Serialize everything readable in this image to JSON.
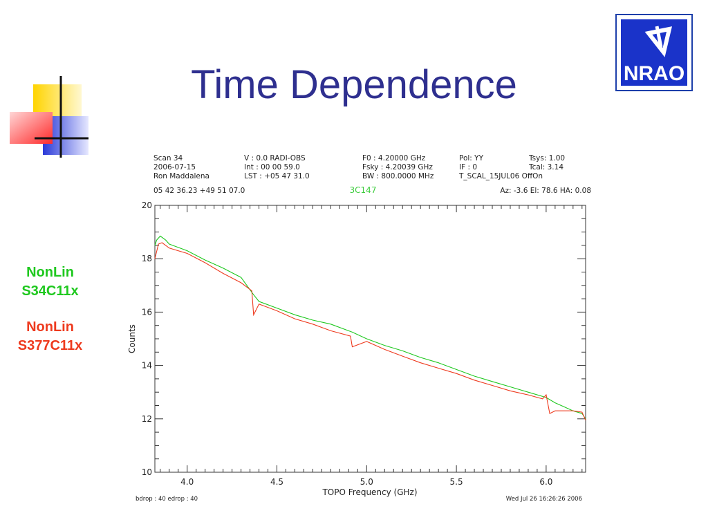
{
  "slide": {
    "title": "Time Dependence",
    "legend": [
      "NonLin\nS34C11x",
      "NonLin\nS377C11x"
    ],
    "legend_lines": [
      [
        "NonLin",
        "S34C11x"
      ],
      [
        "NonLin",
        "S377C11x"
      ]
    ],
    "colors": {
      "title": "#2e2f8f",
      "nonlin_s34": "#1ec81e",
      "nonlin_s377": "#ee3a1e",
      "logo": "#1a33c9"
    }
  },
  "logo": {
    "text": "NRAO"
  },
  "header": {
    "col1": [
      "Scan    34",
      "2006-07-15",
      "Ron Maddalena",
      "05 42 36.23   +49 51 07.0"
    ],
    "col2": [
      "V    :          0.0 RADI-OBS",
      "Int   :   00 00 59.0",
      "LST : +05 47 31.0"
    ],
    "col3": [
      "F0    :    4.20000 GHz",
      "Fsky :    4.20039 GHz",
      "BW    : 800.0000 MHz"
    ],
    "col4": [
      "Pol:     YY",
      "IF :       0",
      "T_SCAL_15JUL06  OffOn"
    ],
    "col5": [
      "Tsys:      1.00",
      "Tcal:      3.14",
      ""
    ],
    "source": "3C147",
    "azel": "Az:   -3.6    El:   78.6    HA:   0.08"
  },
  "footer": {
    "left": "bdrop :    40   edrop :    40",
    "right": "Wed Jul 26 16:26:26 2006"
  },
  "chart_data": {
    "type": "line",
    "title": "3C147",
    "xlabel": "TOPO Frequency (GHz)",
    "ylabel": "Counts",
    "xlim": [
      3.82,
      6.22
    ],
    "ylim": [
      10,
      20
    ],
    "xticks": [
      "4.0",
      "4.5",
      "5.0",
      "5.5",
      "6.0"
    ],
    "xtick_values": [
      4.0,
      4.5,
      5.0,
      5.5,
      6.0
    ],
    "yticks": [
      "10",
      "12",
      "14",
      "16",
      "18",
      "20"
    ],
    "ytick_values": [
      10,
      12,
      14,
      16,
      18,
      20
    ],
    "grid": false,
    "series": [
      {
        "name": "NonLin S34C11x",
        "color": "#1ec81e",
        "x": [
          3.82,
          3.83,
          3.85,
          3.88,
          3.9,
          4.0,
          4.1,
          4.2,
          4.3,
          4.37,
          4.4,
          4.5,
          4.6,
          4.7,
          4.8,
          4.92,
          5.0,
          5.1,
          5.2,
          5.3,
          5.4,
          5.5,
          5.6,
          5.7,
          5.8,
          5.9,
          6.0,
          6.05,
          6.1,
          6.15,
          6.2,
          6.22
        ],
        "y": [
          18.5,
          18.7,
          18.85,
          18.7,
          18.55,
          18.3,
          17.95,
          17.65,
          17.3,
          16.65,
          16.4,
          16.15,
          15.9,
          15.7,
          15.55,
          15.25,
          15.0,
          14.75,
          14.55,
          14.3,
          14.1,
          13.85,
          13.6,
          13.4,
          13.2,
          13.0,
          12.8,
          12.6,
          12.45,
          12.3,
          12.2,
          12.0
        ]
      },
      {
        "name": "NonLin S377C11x",
        "color": "#ee3a1e",
        "x": [
          3.82,
          3.84,
          3.86,
          3.9,
          4.0,
          4.1,
          4.2,
          4.3,
          4.36,
          4.37,
          4.4,
          4.5,
          4.6,
          4.7,
          4.8,
          4.91,
          4.92,
          5.0,
          5.1,
          5.2,
          5.3,
          5.4,
          5.5,
          5.6,
          5.7,
          5.8,
          5.9,
          5.98,
          6.0,
          6.02,
          6.05,
          6.1,
          6.15,
          6.2,
          6.22
        ],
        "y": [
          18.0,
          18.55,
          18.6,
          18.4,
          18.2,
          17.85,
          17.45,
          17.1,
          16.8,
          15.9,
          16.3,
          16.05,
          15.75,
          15.55,
          15.3,
          15.1,
          14.7,
          14.9,
          14.6,
          14.35,
          14.1,
          13.9,
          13.7,
          13.45,
          13.25,
          13.05,
          12.9,
          12.75,
          12.9,
          12.2,
          12.3,
          12.3,
          12.3,
          12.25,
          11.95
        ]
      }
    ]
  }
}
